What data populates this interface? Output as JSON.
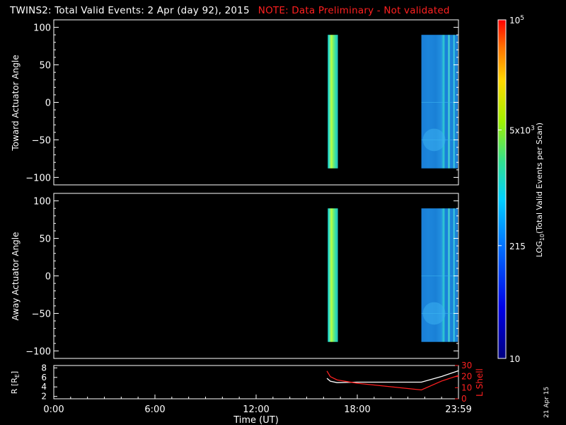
{
  "title": "TWINS2: Total Valid Events:  2 Apr (day  92), 2015",
  "note": "NOTE: Data Preliminary - Not validated",
  "stamp": "21 Apr 15",
  "colors": {
    "background": "#000000",
    "axes": "#ffffff",
    "note": "#ff2020",
    "r_line": "#ffffff",
    "lshell_line": "#ff2020"
  },
  "chart_data": [
    {
      "type": "heatmap",
      "panel": "toward",
      "ylabel": "Toward Actuator Angle",
      "xlim": [
        0,
        24
      ],
      "ylim": [
        -110,
        110
      ],
      "yticks": [
        100,
        50,
        0,
        -50,
        -100
      ],
      "ytick_labels": [
        "100",
        "50",
        "0",
        "−50",
        "−100"
      ],
      "angle_range": [
        -88,
        90
      ],
      "data_blocks": [
        {
          "t_start": 16.25,
          "t_end": 16.85,
          "level": "215-5x10^3"
        },
        {
          "t_start": 21.8,
          "t_end": 24.0,
          "level": "~215"
        }
      ]
    },
    {
      "type": "heatmap",
      "panel": "away",
      "ylabel": "Away Actuator Angle",
      "xlim": [
        0,
        24
      ],
      "ylim": [
        -110,
        110
      ],
      "yticks": [
        100,
        50,
        0,
        -50,
        -100
      ],
      "ytick_labels": [
        "100",
        "50",
        "0",
        "−50",
        "−100"
      ],
      "angle_range": [
        -88,
        90
      ],
      "data_blocks": [
        {
          "t_start": 16.25,
          "t_end": 16.85,
          "level": "215-5x10^3"
        },
        {
          "t_start": 21.8,
          "t_end": 24.0,
          "level": "~215"
        }
      ]
    },
    {
      "type": "line",
      "panel": "orbit",
      "xlabel": "Time (UT)",
      "xlim": [
        0,
        24
      ],
      "xticks": [
        0,
        6,
        12,
        18,
        24
      ],
      "xtick_labels": [
        "0:00",
        "6:00",
        "12:00",
        "18:00",
        "23:59"
      ],
      "ylabel_left": "R [R",
      "ylabel_left_sub": "E",
      "ylabel_left_end": "]",
      "ylim_left": [
        1.5,
        8.5
      ],
      "yticks_left": [
        8,
        6,
        4,
        2
      ],
      "ylabel_right": "L Shell",
      "ylim_right": [
        0,
        30
      ],
      "yticks_right": [
        30,
        20,
        10,
        0
      ],
      "series": [
        {
          "axis": "left",
          "x": [
            16.2,
            16.4,
            16.8,
            18.0,
            21.8,
            23.0,
            24.0
          ],
          "y": [
            5.8,
            5.2,
            4.9,
            5.0,
            5.0,
            6.2,
            7.4
          ]
        },
        {
          "axis": "right",
          "x": [
            16.2,
            16.4,
            16.8,
            18.0,
            21.8,
            23.0,
            24.0
          ],
          "y": [
            25.0,
            20.0,
            17.0,
            14.0,
            8.0,
            16.0,
            21.0
          ]
        }
      ]
    }
  ],
  "colorbar": {
    "scale": "log",
    "range": [
      10,
      100000
    ],
    "label": "LOG",
    "label_sub": "10",
    "label_end": "(Total Valid Events per Scan)",
    "ticks": [
      {
        "value": 100000,
        "text": "10",
        "sup": "5"
      },
      {
        "value": 5000,
        "text": "5x10",
        "sup": "3"
      },
      {
        "value": 215,
        "text": "215",
        "sup": ""
      },
      {
        "value": 10,
        "text": "10",
        "sup": ""
      }
    ]
  }
}
